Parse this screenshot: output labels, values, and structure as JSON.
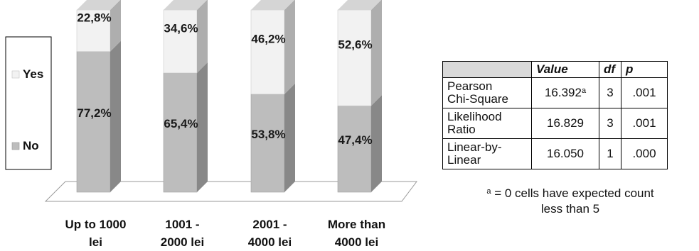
{
  "chart_data": {
    "type": "bar",
    "stacked": true,
    "percent_stacked": true,
    "three_d": true,
    "categories": [
      "Up to 1000 lei",
      "1001 - 2000 lei",
      "2001 - 4000 lei",
      "More than 4000 lei"
    ],
    "category_lines": [
      [
        "Up to 1000",
        "lei"
      ],
      [
        "1001 -",
        "2000 lei"
      ],
      [
        "2001 -",
        "4000 lei"
      ],
      [
        "More than",
        "4000 lei"
      ]
    ],
    "series": [
      {
        "name": "No",
        "values": [
          77.2,
          65.4,
          53.8,
          47.4
        ],
        "labels": [
          "77,2%",
          "65,4%",
          "53,8%",
          "47,4%"
        ],
        "color": "#bdbdbd"
      },
      {
        "name": "Yes",
        "values": [
          22.8,
          34.6,
          46.2,
          52.6
        ],
        "labels": [
          "22,8%",
          "34,6%",
          "46,2%",
          "52,6%"
        ],
        "color": "#f2f2f2"
      }
    ],
    "ylim": [
      0,
      100
    ],
    "legend_position": "left",
    "legend_order": [
      "Yes",
      "No"
    ],
    "grid": false
  },
  "stats_table": {
    "headers": [
      "",
      "Value",
      "df",
      "p"
    ],
    "rows": [
      {
        "label_lines": [
          "Pearson",
          "Chi-Square"
        ],
        "value": "16.392",
        "value_mark": "a",
        "df": "3",
        "p": ".001"
      },
      {
        "label_lines": [
          "Likelihood",
          "Ratio"
        ],
        "value": "16.829",
        "df": "3",
        "p": ".001"
      },
      {
        "label_lines": [
          "Linear-by-",
          "Linear"
        ],
        "value": "16.050",
        "df": "1",
        "p": ".000"
      }
    ],
    "footnote_mark": "a",
    "footnote_lines": [
      "= 0 cells have expected count",
      "less than 5"
    ]
  }
}
